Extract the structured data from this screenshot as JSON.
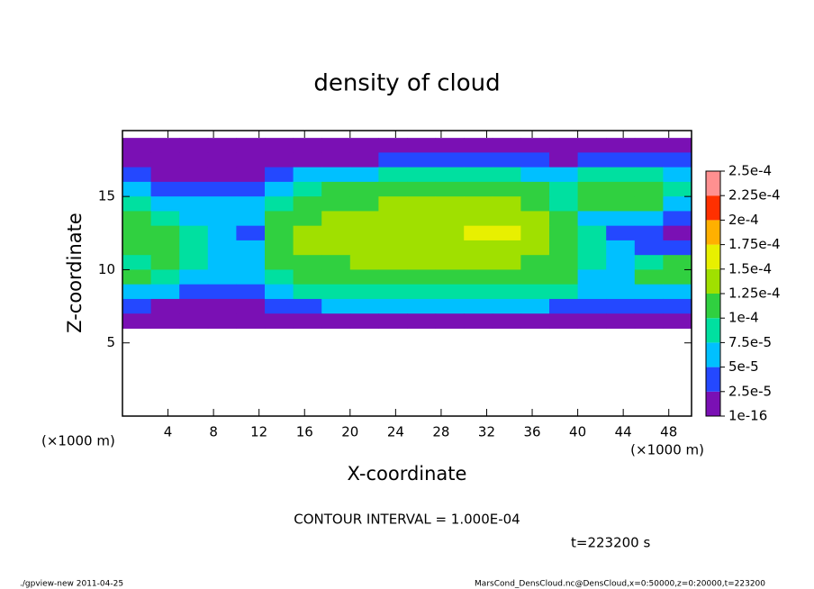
{
  "chart_data": {
    "type": "heatmap",
    "title": "density of cloud",
    "x_label": "X-coordinate",
    "y_label": "Z-coordinate",
    "x_unit": "(×1000 m)",
    "y_unit": "(×1000 m)",
    "xlim": [
      0,
      50
    ],
    "ylim": [
      0,
      19.5
    ],
    "xticks": [
      4,
      8,
      12,
      16,
      20,
      24,
      28,
      32,
      36,
      40,
      44,
      48
    ],
    "yticks": [
      5,
      10,
      15
    ],
    "x": [
      0,
      2.5,
      5,
      7.5,
      10,
      12.5,
      15,
      17.5,
      20,
      22.5,
      25,
      27.5,
      30,
      32.5,
      35,
      37.5,
      40,
      42.5,
      45,
      47.5,
      50
    ],
    "y": [
      19,
      18,
      17,
      16,
      15,
      14,
      13,
      12,
      11,
      10,
      9,
      8,
      7,
      6
    ],
    "values": [
      [
        1e-05,
        5e-06,
        3e-06,
        3e-06,
        5e-06,
        5e-06,
        5e-06,
        5e-06,
        5e-06,
        5e-06,
        5e-06,
        5e-06,
        5e-06,
        5e-06,
        5e-06,
        5e-06,
        5e-06,
        1e-05,
        1e-05,
        1e-05
      ],
      [
        2e-05,
        1e-05,
        1e-05,
        5e-06,
        1e-05,
        2e-05,
        2e-05,
        2e-05,
        2e-05,
        3e-05,
        3e-05,
        3e-05,
        3e-05,
        3e-05,
        3e-05,
        2e-05,
        3e-05,
        4e-05,
        4e-05,
        3e-05
      ],
      [
        4e-05,
        2e-05,
        2e-05,
        1e-05,
        2e-05,
        3e-05,
        5e-05,
        6e-05,
        7e-05,
        8e-05,
        9e-05,
        9e-05,
        9e-05,
        8e-05,
        7e-05,
        6e-05,
        9e-05,
        9e-05,
        9e-05,
        6e-05
      ],
      [
        7e-05,
        4e-05,
        4e-05,
        3e-05,
        3e-05,
        5e-05,
        9e-05,
        0.0001,
        0.00011,
        0.00012,
        0.00012,
        0.00012,
        0.00012,
        0.00011,
        0.0001,
        8e-05,
        0.00011,
        0.00011,
        0.00011,
        8e-05
      ],
      [
        9e-05,
        7e-05,
        6e-05,
        6e-05,
        5e-05,
        8e-05,
        0.00011,
        0.00012,
        0.00012,
        0.00013,
        0.00013,
        0.00013,
        0.00013,
        0.00013,
        0.00012,
        9e-05,
        0.0001,
        0.00011,
        0.0001,
        6e-05
      ],
      [
        0.00011,
        9e-05,
        7e-05,
        6e-05,
        5e-05,
        0.0001,
        0.00012,
        0.00013,
        0.00013,
        0.00013,
        0.00014,
        0.00014,
        0.00014,
        0.00014,
        0.00013,
        0.0001,
        7e-05,
        7e-05,
        5e-05,
        3e-05
      ],
      [
        0.00012,
        0.00012,
        8e-05,
        5e-05,
        4e-05,
        0.00011,
        0.00013,
        0.00013,
        0.00014,
        0.00014,
        0.00014,
        0.00014,
        0.00015,
        0.00015,
        0.00014,
        0.00012,
        8e-05,
        4e-05,
        3e-05,
        2e-05
      ],
      [
        0.00011,
        0.00011,
        9e-05,
        6e-05,
        5e-05,
        0.00011,
        0.00013,
        0.00013,
        0.00013,
        0.00014,
        0.00014,
        0.00014,
        0.00014,
        0.00014,
        0.00014,
        0.00012,
        9e-05,
        5e-05,
        3e-05,
        3e-05
      ],
      [
        9e-05,
        0.0001,
        8e-05,
        5e-05,
        5e-05,
        0.00011,
        0.00012,
        0.00012,
        0.00013,
        0.00013,
        0.00013,
        0.00013,
        0.00013,
        0.00013,
        0.00012,
        0.00011,
        8e-05,
        5e-05,
        8e-05,
        0.0001
      ],
      [
        0.0001,
        8e-05,
        6e-05,
        5e-05,
        5e-05,
        9e-05,
        0.00011,
        0.00011,
        0.00012,
        0.00012,
        0.00012,
        0.00012,
        0.00012,
        0.00011,
        0.00011,
        0.0001,
        7e-05,
        6e-05,
        0.0001,
        0.00011
      ],
      [
        6e-05,
        5e-05,
        3e-05,
        4e-05,
        4e-05,
        6e-05,
        8e-05,
        9e-05,
        9e-05,
        9e-05,
        9e-05,
        9e-05,
        9e-05,
        9e-05,
        9e-05,
        8e-05,
        6e-05,
        5e-05,
        7e-05,
        7e-05
      ],
      [
        3e-05,
        2e-05,
        2e-05,
        2e-05,
        2e-05,
        3e-05,
        4e-05,
        5e-05,
        5e-05,
        5e-05,
        5e-05,
        5e-05,
        5e-05,
        5e-05,
        5e-05,
        4e-05,
        3e-05,
        3e-05,
        4e-05,
        4e-05
      ],
      [
        1e-05,
        1e-05,
        1e-05,
        1e-05,
        1e-05,
        1e-05,
        1e-05,
        1e-05,
        1e-05,
        1e-05,
        1e-05,
        1e-05,
        1e-05,
        1e-05,
        1e-05,
        1e-05,
        1e-05,
        1e-05,
        1e-05,
        1e-05
      ]
    ],
    "colorbar": {
      "levels": [
        {
          "value": 1e-16,
          "label": "1e-16"
        },
        {
          "value": 2.5e-05,
          "label": "2.5e-5"
        },
        {
          "value": 5e-05,
          "label": "5e-5"
        },
        {
          "value": 7.5e-05,
          "label": "7.5e-5"
        },
        {
          "value": 0.0001,
          "label": "1e-4"
        },
        {
          "value": 0.000125,
          "label": "1.25e-4"
        },
        {
          "value": 0.00015,
          "label": "1.5e-4"
        },
        {
          "value": 0.000175,
          "label": "1.75e-4"
        },
        {
          "value": 0.0002,
          "label": "2e-4"
        },
        {
          "value": 0.000225,
          "label": "2.25e-4"
        },
        {
          "value": 0.00025,
          "label": "2.5e-4"
        }
      ],
      "colors": [
        "#7a10b4",
        "#2448ff",
        "#00c0ff",
        "#00e0a0",
        "#30d040",
        "#a0e000",
        "#e8f000",
        "#ffb000",
        "#ff3000",
        "#ff9090"
      ]
    },
    "contour_interval": "CONTOUR INTERVAL = 1.000E-04",
    "time_label": "t=223200 s",
    "footer_left": "./gpview-new   2011-04-25",
    "footer_right": "MarsCond_DensCloud.nc@DensCloud,x=0:50000,z=0:20000,t=223200"
  }
}
